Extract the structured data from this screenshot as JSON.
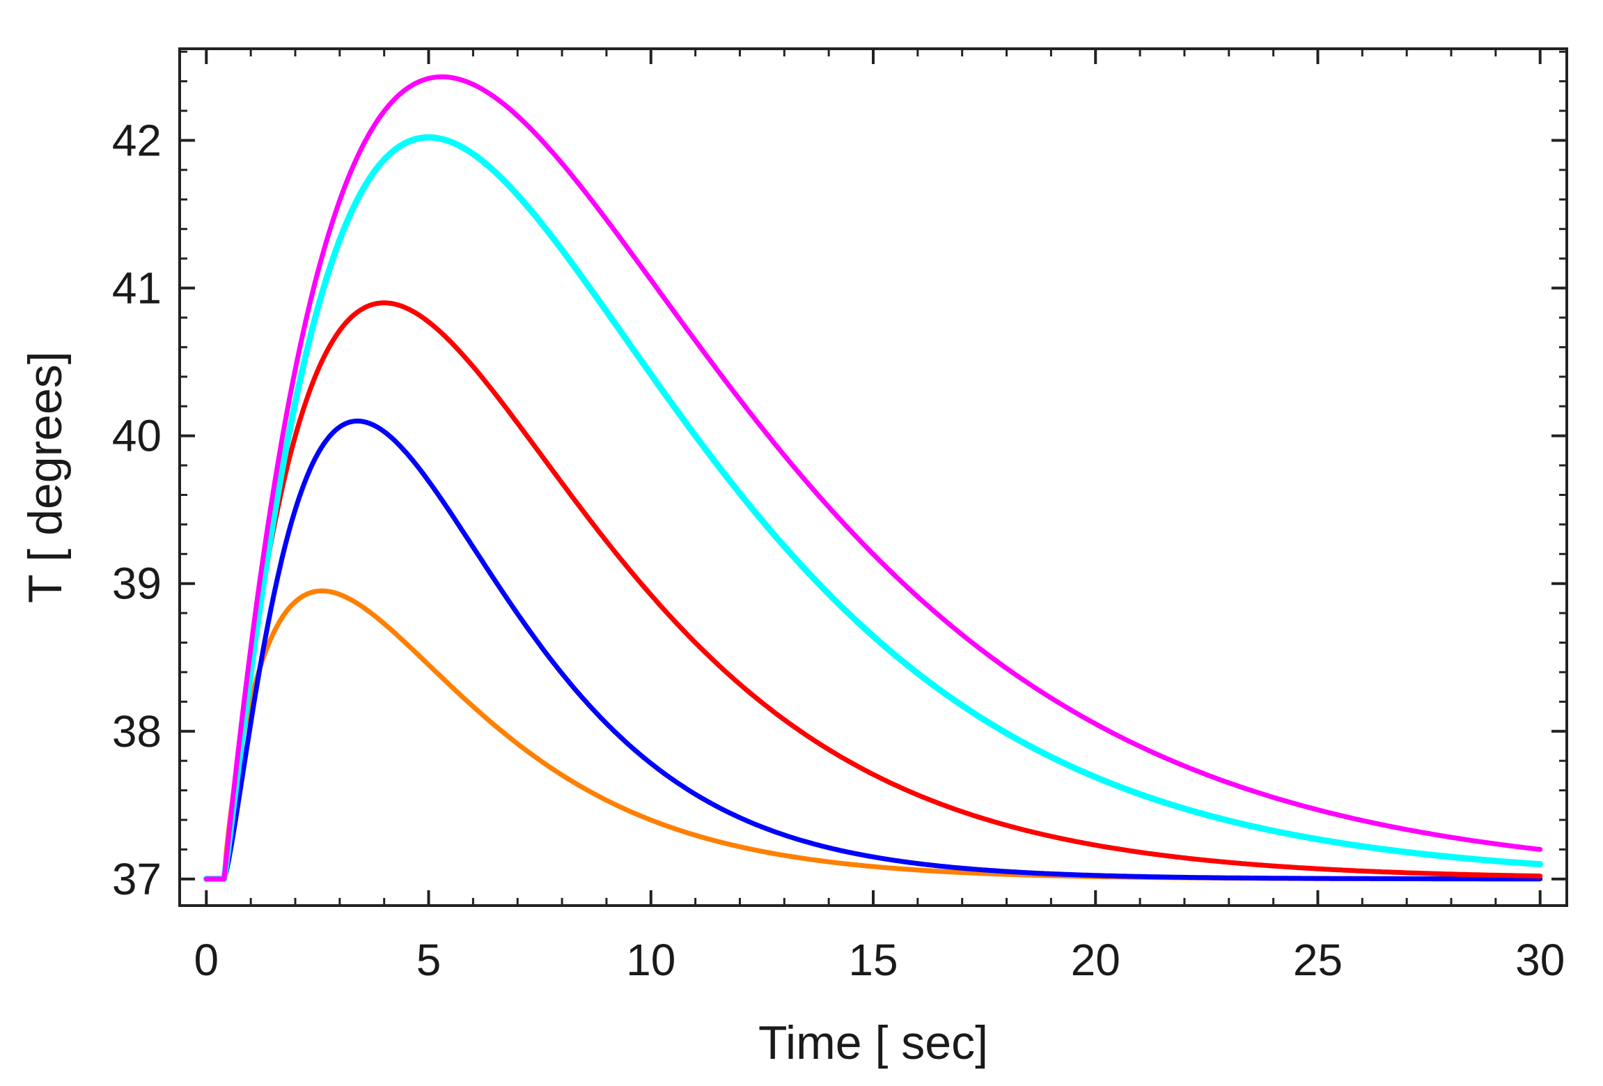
{
  "chart_data": {
    "type": "line",
    "title": "",
    "xlabel": "Time [ sec]",
    "ylabel": "T [ degrees]",
    "xlim": [
      -0.6,
      30.6
    ],
    "ylim": [
      36.82,
      42.62
    ],
    "xticks": [
      0,
      5,
      10,
      15,
      20,
      25,
      30
    ],
    "yticks": [
      37,
      38,
      39,
      40,
      41,
      42
    ],
    "xtick_labels": [
      "0",
      "5",
      "10",
      "15",
      "20",
      "25",
      "30"
    ],
    "ytick_labels": [
      "37",
      "38",
      "39",
      "40",
      "41",
      "42"
    ],
    "grid": false,
    "legend": "none",
    "baseline": 37,
    "onset": 0.4,
    "series": [
      {
        "name": "orange",
        "color": "#ff8000",
        "peak_time": 2.6,
        "peak_value": 38.95,
        "value_at_30": 37.0
      },
      {
        "name": "blue",
        "color": "#0000ff",
        "peak_time": 3.4,
        "peak_value": 40.1,
        "value_at_30": 37.0
      },
      {
        "name": "red",
        "color": "#ff0000",
        "peak_time": 4.0,
        "peak_value": 40.9,
        "value_at_30": 37.02
      },
      {
        "name": "cyan",
        "color": "#00ffff",
        "peak_time": 5.0,
        "peak_value": 42.02,
        "value_at_30": 37.1
      },
      {
        "name": "magenta",
        "color": "#ff00ff",
        "peak_time": 5.3,
        "peak_value": 42.43,
        "value_at_30": 37.2
      }
    ]
  }
}
